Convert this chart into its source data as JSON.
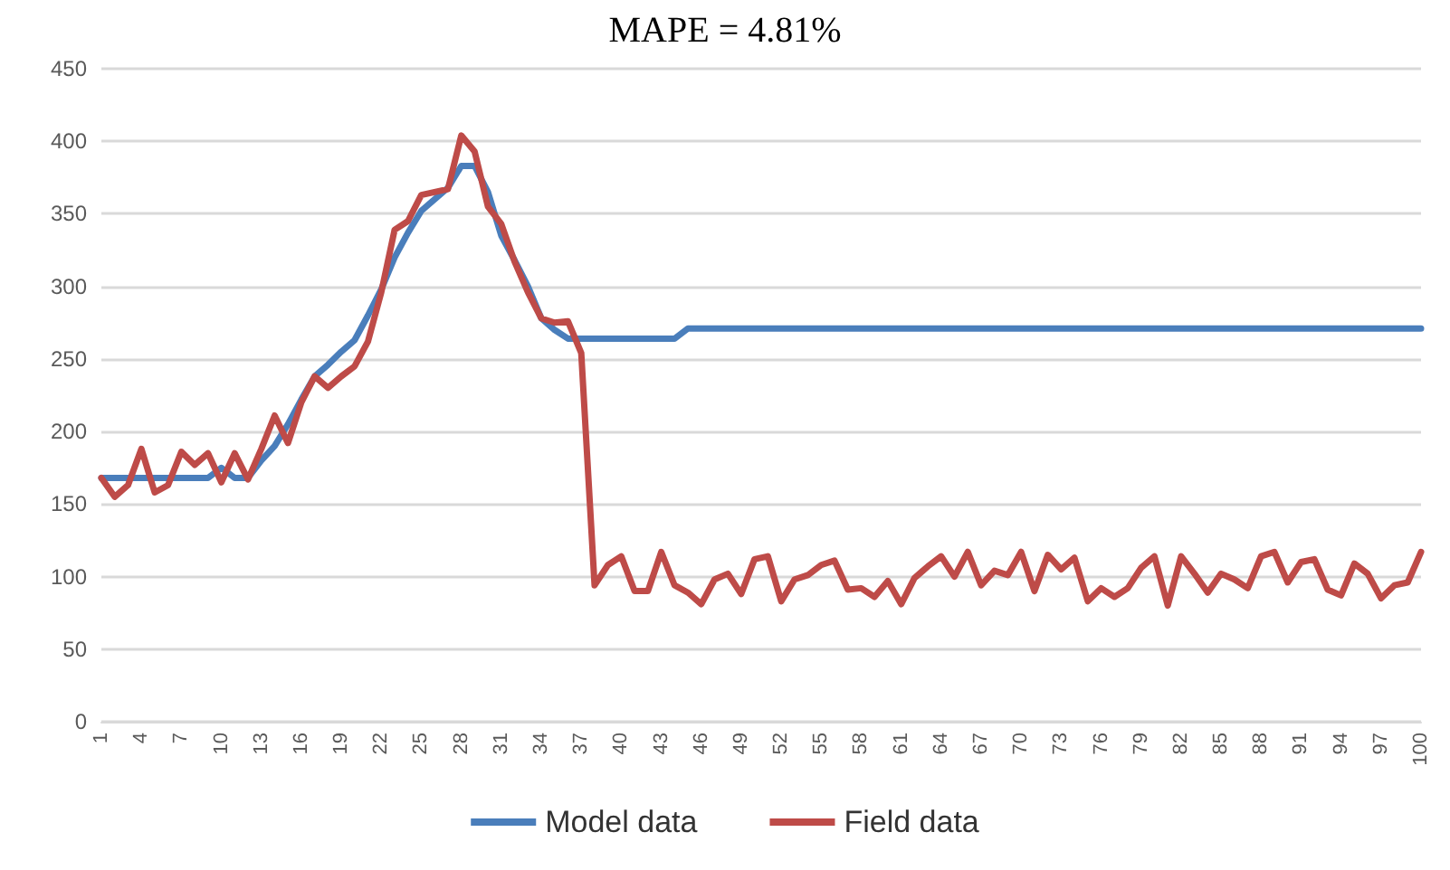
{
  "chart_data": {
    "type": "line",
    "title": "MAPE = 4.81%",
    "categories": [
      "1",
      null,
      null,
      "4",
      null,
      null,
      "7",
      null,
      null,
      "10",
      null,
      null,
      "13",
      null,
      null,
      "16",
      null,
      null,
      "19",
      null,
      null,
      "22",
      null,
      null,
      "25",
      null,
      null,
      "28",
      null,
      null,
      "31",
      null,
      null,
      "34",
      null,
      null,
      "37",
      null,
      null,
      "40",
      null,
      null,
      "43",
      null,
      null,
      "46",
      null,
      null,
      "49",
      null,
      null,
      "52",
      null,
      null,
      "55",
      null,
      null,
      "58",
      null,
      null,
      "61",
      null,
      null,
      "64",
      null,
      null,
      "67",
      null,
      null,
      "70",
      null,
      null,
      "73",
      null,
      null,
      "76",
      null,
      null,
      "79",
      null,
      null,
      "82",
      null,
      null,
      "85",
      null,
      null,
      "88",
      null,
      null,
      "91",
      null,
      null,
      "94",
      null,
      null,
      "97",
      null,
      null,
      "100"
    ],
    "series": [
      {
        "name": "Model data",
        "color": "#4a7ebb",
        "values": [
          168,
          168,
          168,
          168,
          168,
          168,
          168,
          168,
          168,
          175,
          168,
          168,
          180,
          190,
          205,
          222,
          238,
          246,
          255,
          263,
          280,
          298,
          320,
          337,
          352,
          360,
          368,
          383,
          383,
          365,
          335,
          318,
          300,
          278,
          270,
          264,
          264,
          264,
          264,
          264,
          264,
          264,
          264,
          264,
          271,
          271,
          271,
          271,
          271,
          271,
          271,
          271,
          271,
          271,
          271,
          271,
          271,
          271,
          271,
          271,
          271,
          271,
          271,
          271,
          271,
          271,
          271,
          271,
          271,
          271,
          271,
          271,
          271,
          271,
          271,
          271,
          271,
          271,
          271,
          271,
          271,
          271,
          271,
          271,
          271,
          271,
          271,
          271,
          271,
          271,
          271,
          271,
          271,
          271,
          271,
          271,
          271,
          271,
          271,
          271
        ]
      },
      {
        "name": "Field data",
        "color": "#be4b48",
        "values": [
          168,
          155,
          163,
          188,
          158,
          163,
          186,
          177,
          185,
          165,
          185,
          167,
          188,
          211,
          192,
          220,
          238,
          230,
          238,
          245,
          262,
          296,
          339,
          345,
          363,
          365,
          367,
          404,
          393,
          355,
          343,
          317,
          296,
          278,
          275,
          276,
          254,
          94,
          108,
          114,
          90,
          90,
          117,
          94,
          89,
          81,
          98,
          102,
          88,
          112,
          114,
          83,
          98,
          101,
          108,
          111,
          91,
          92,
          86,
          97,
          81,
          99,
          107,
          114,
          100,
          117,
          94,
          104,
          101,
          117,
          90,
          115,
          105,
          113,
          83,
          92,
          86,
          92,
          106,
          114,
          80,
          114,
          102,
          89,
          102,
          98,
          92,
          114,
          117,
          96,
          110,
          112,
          91,
          87,
          109,
          102,
          85,
          94,
          96,
          117
        ]
      }
    ],
    "ylim": [
      0,
      450
    ],
    "yticks": [
      0,
      50,
      100,
      150,
      200,
      250,
      300,
      350,
      400,
      450
    ],
    "grid": "y",
    "legend": "bottom",
    "marker": "none",
    "line_style": "solid"
  }
}
